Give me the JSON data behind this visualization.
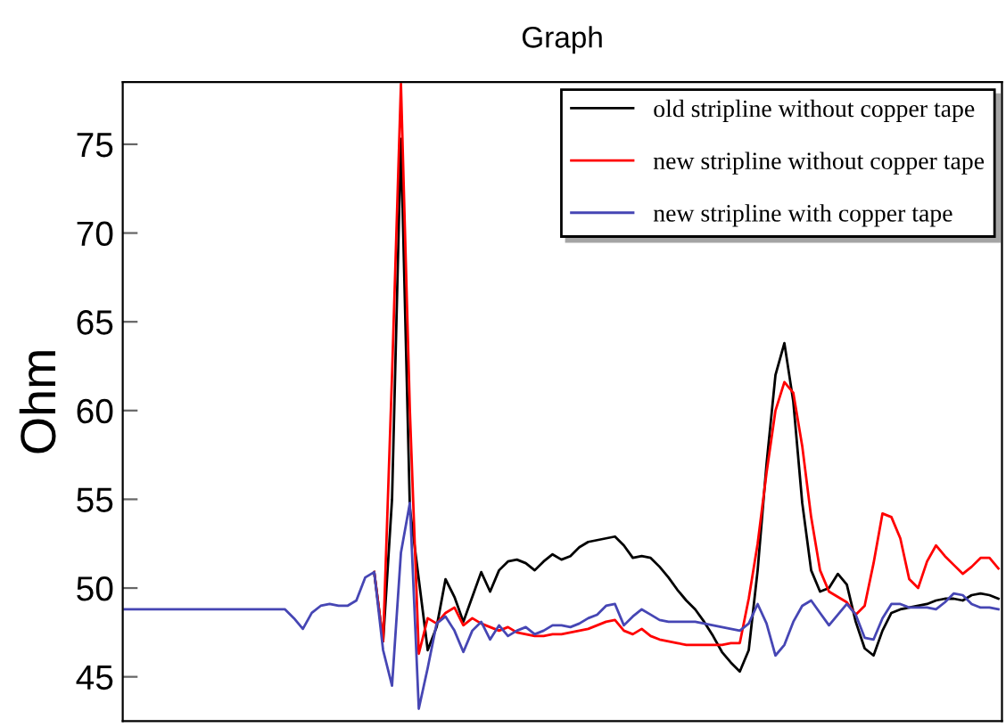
{
  "chart_data": {
    "type": "line",
    "title": "Graph",
    "ylabel": "Ohm",
    "categories": [
      null,
      null,
      null,
      null,
      null,
      null,
      null,
      null,
      null,
      null,
      null,
      null,
      null,
      null,
      null,
      null,
      null,
      null,
      null,
      null,
      null,
      null,
      null,
      null,
      null,
      null,
      null,
      null,
      null,
      null,
      null,
      null,
      null,
      null,
      null,
      null,
      null,
      null,
      null,
      null,
      null,
      null,
      null,
      null,
      null,
      null,
      null,
      null,
      null,
      null,
      null,
      null,
      null,
      null,
      null,
      null,
      null,
      null,
      null,
      null,
      null,
      null,
      null,
      null,
      null,
      null,
      null,
      null,
      null,
      null,
      null,
      null,
      null,
      null,
      null,
      null,
      null,
      null,
      null,
      null,
      null,
      null,
      null,
      null,
      null,
      null,
      null,
      null,
      null,
      null,
      null,
      null,
      null,
      null,
      null,
      null,
      null,
      null,
      null
    ],
    "series": [
      {
        "name": "old stripline without copper tape",
        "color": "#000000",
        "values": [
          null,
          null,
          null,
          null,
          null,
          null,
          null,
          null,
          null,
          null,
          null,
          null,
          null,
          null,
          null,
          null,
          null,
          null,
          null,
          null,
          null,
          null,
          null,
          null,
          null,
          null,
          null,
          null,
          50.9,
          47.0,
          55.0,
          75.3,
          54.5,
          50.5,
          46.5,
          47.8,
          50.5,
          49.5,
          48.1,
          49.5,
          50.9,
          49.8,
          51.0,
          51.5,
          51.6,
          51.4,
          51.0,
          51.5,
          51.9,
          51.6,
          51.8,
          52.3,
          52.6,
          52.7,
          52.8,
          52.9,
          52.4,
          51.7,
          51.8,
          51.7,
          51.2,
          50.6,
          49.9,
          49.3,
          48.8,
          48.1,
          47.3,
          46.4,
          45.8,
          45.3,
          46.5,
          51.0,
          57.0,
          62.0,
          63.8,
          60.5,
          54.8,
          51.0,
          49.8,
          50.0,
          50.8,
          50.2,
          48.1,
          46.6,
          46.2,
          47.6,
          48.6,
          48.8,
          48.9,
          49.0,
          49.1,
          49.3,
          49.4,
          49.4,
          49.3,
          49.6,
          49.7,
          49.6,
          49.4
        ]
      },
      {
        "name": "new stripline without copper tape",
        "color": "#ff0000",
        "values": [
          null,
          null,
          null,
          null,
          null,
          null,
          null,
          null,
          null,
          null,
          null,
          null,
          null,
          null,
          null,
          null,
          null,
          null,
          null,
          null,
          null,
          null,
          null,
          null,
          null,
          null,
          null,
          null,
          50.9,
          47.0,
          62.0,
          78.4,
          60.0,
          46.3,
          48.3,
          48.0,
          48.6,
          48.9,
          47.9,
          48.3,
          48.0,
          47.8,
          47.6,
          47.8,
          47.5,
          47.4,
          47.3,
          47.3,
          47.4,
          47.4,
          47.5,
          47.6,
          47.7,
          47.9,
          48.1,
          48.2,
          47.6,
          47.4,
          47.7,
          47.3,
          47.1,
          47.0,
          46.9,
          46.8,
          46.8,
          46.8,
          46.8,
          46.8,
          46.9,
          46.9,
          49.4,
          52.5,
          56.5,
          60.0,
          61.6,
          61.0,
          58.0,
          54.0,
          51.0,
          49.8,
          49.5,
          49.2,
          48.5,
          49.0,
          51.4,
          54.2,
          54.0,
          52.8,
          50.5,
          50.0,
          51.5,
          52.4,
          51.8,
          51.3,
          50.8,
          51.2,
          51.7,
          51.7,
          51.1
        ]
      },
      {
        "name": "new stripline with copper tape",
        "color": "#4646b4",
        "values": [
          48.8,
          48.8,
          48.8,
          48.8,
          48.8,
          48.8,
          48.8,
          48.8,
          48.8,
          48.8,
          48.8,
          48.8,
          48.8,
          48.8,
          48.8,
          48.8,
          48.8,
          48.8,
          48.8,
          48.3,
          47.7,
          48.6,
          49.0,
          49.1,
          49.0,
          49.0,
          49.3,
          50.6,
          50.9,
          46.5,
          44.5,
          52.0,
          54.8,
          43.2,
          45.5,
          48.0,
          48.4,
          47.6,
          46.4,
          47.6,
          48.1,
          47.1,
          47.9,
          47.3,
          47.6,
          47.8,
          47.4,
          47.6,
          47.9,
          47.9,
          47.8,
          48.0,
          48.3,
          48.5,
          49.0,
          49.1,
          47.9,
          48.4,
          48.8,
          48.5,
          48.2,
          48.1,
          48.1,
          48.1,
          48.1,
          48.0,
          47.9,
          47.8,
          47.7,
          47.6,
          48.0,
          49.1,
          48.0,
          46.2,
          46.8,
          48.1,
          49.0,
          49.3,
          48.6,
          47.9,
          48.5,
          49.1,
          48.5,
          47.2,
          47.1,
          48.3,
          49.1,
          49.1,
          48.9,
          48.9,
          48.9,
          48.8,
          49.2,
          49.7,
          49.6,
          49.1,
          48.9,
          48.9,
          48.8
        ]
      }
    ],
    "ylim": [
      42.5,
      78.5
    ],
    "yticks": [
      45,
      50,
      55,
      60,
      65,
      70,
      75
    ],
    "tick_labels": "y",
    "grid": false,
    "legend": "top right",
    "line_style": "solid",
    "marker": "none"
  }
}
